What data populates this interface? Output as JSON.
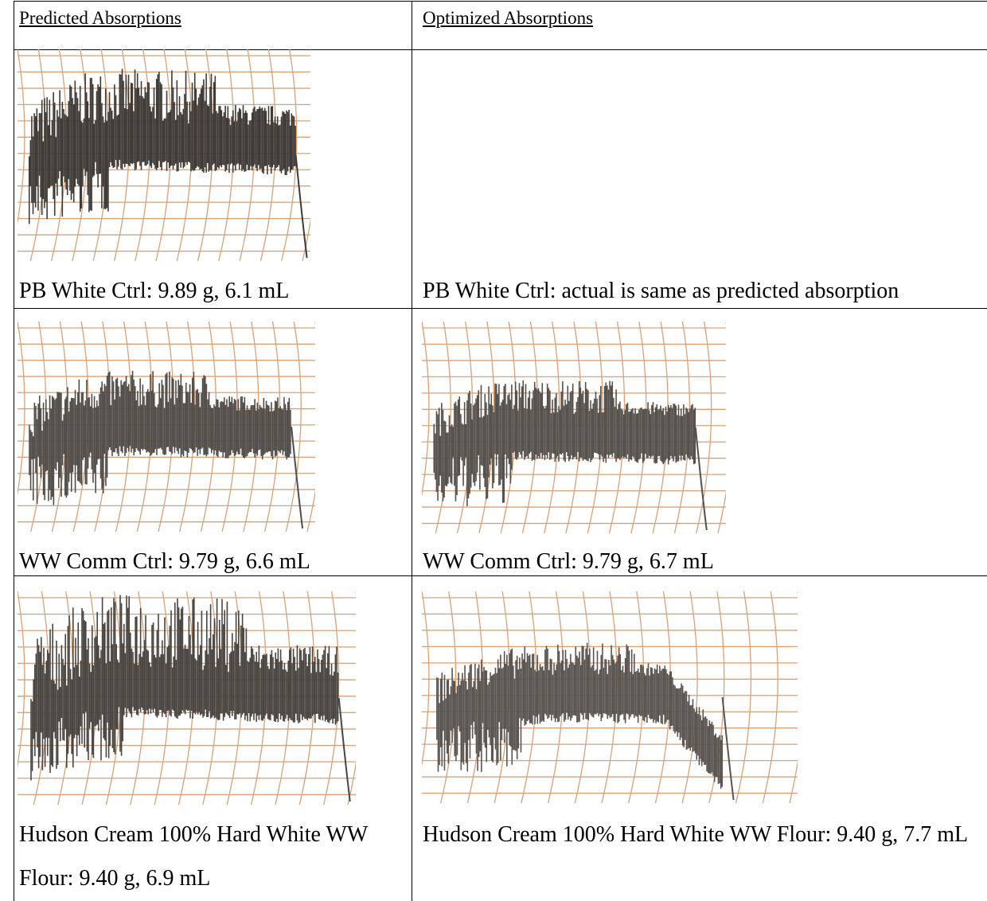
{
  "table": {
    "headers": [
      "Predicted Absorptions",
      "Optimized Absorptions"
    ],
    "rows": [
      [
        "PB White Ctrl: 9.89 g, 6.1 mL",
        "PB White Ctrl: actual is same as predicted absorption"
      ],
      [
        "WW Comm Ctrl: 9.79 g, 6.6 mL",
        "WW Comm Ctrl: 9.79 g, 6.7 mL"
      ],
      [
        "Hudson Cream 100% Hard White WW Flour: 9.40 g, 6.9 mL",
        "Hudson Cream 100% Hard White WW Flour: 9.40 g, 7.7 mL"
      ]
    ]
  }
}
